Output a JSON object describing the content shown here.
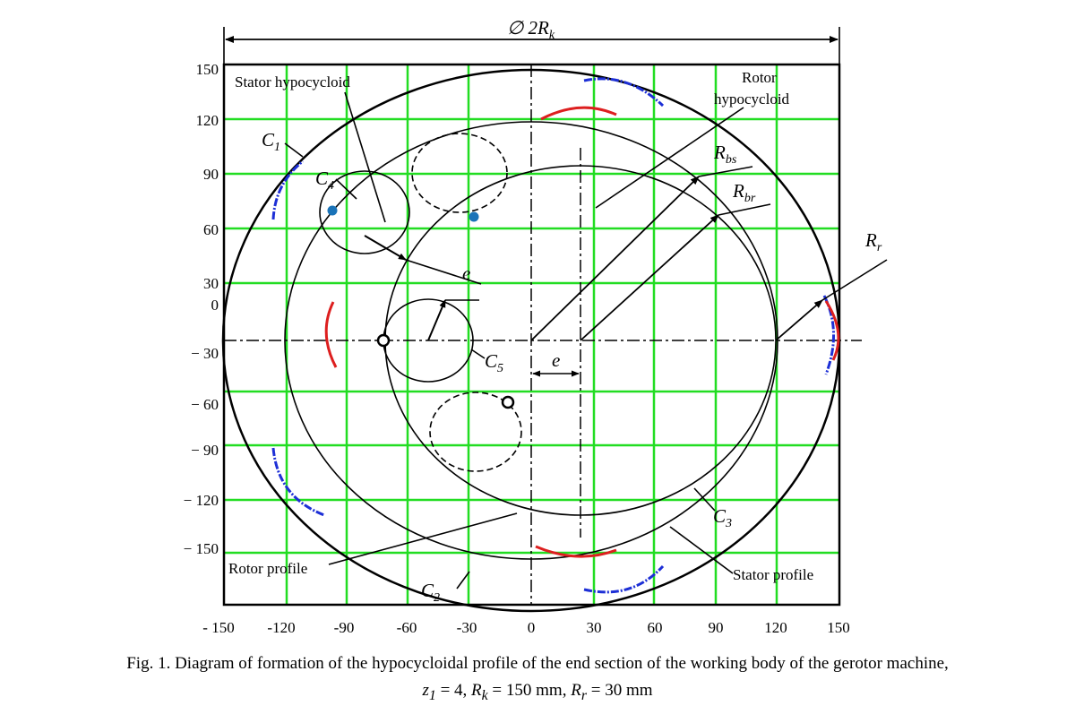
{
  "diameter_label": {
    "prefix": "∅ 2R",
    "sub": "k"
  },
  "x_ticks": [
    "- 150",
    "-120",
    "-90",
    "-60",
    "-30",
    "0",
    "30",
    "60",
    "90",
    "120",
    "150"
  ],
  "y_ticks": [
    "150",
    "120",
    "90",
    "60",
    "30",
    "0",
    "− 30",
    "− 60",
    "− 90",
    "− 120",
    "− 150"
  ],
  "labels": {
    "stator_hypocycloid": "Stator hypocycloid",
    "rotor_hypocycloid_line1": "Rotor",
    "rotor_hypocycloid_line2": "hypocycloid",
    "rotor_profile": "Rotor profile",
    "stator_profile": "Stator profile",
    "e_upper": "e",
    "e_lower": "e"
  },
  "symbols": {
    "C1": {
      "main": "C",
      "sub": "1"
    },
    "C2": {
      "main": "C",
      "sub": "2"
    },
    "C3": {
      "main": "C",
      "sub": "3"
    },
    "C4": {
      "main": "C",
      "sub": "4"
    },
    "C5": {
      "main": "C",
      "sub": "5"
    },
    "Rbs": {
      "main": "R",
      "sub": "bs"
    },
    "Rbr": {
      "main": "R",
      "sub": "br"
    },
    "Rr": {
      "main": "R",
      "sub": "r"
    }
  },
  "caption": {
    "line1": "Fig. 1. Diagram of formation of the hypocycloidal profile of the end section of the working body of the gerotor machine,",
    "z_sym": "z",
    "z_sub": "1",
    "z_text": " = 4, ",
    "rk_sym": "R",
    "rk_sub": "k",
    "rk_text": " = 150 mm, ",
    "rr_sym": "R",
    "rr_sub": "r",
    "rr_text": " = 30 mm"
  },
  "colors": {
    "grid": "#22dd22",
    "blue": "#1d2fd6",
    "red": "#dd1f1f",
    "dot": "#1a73b8"
  }
}
